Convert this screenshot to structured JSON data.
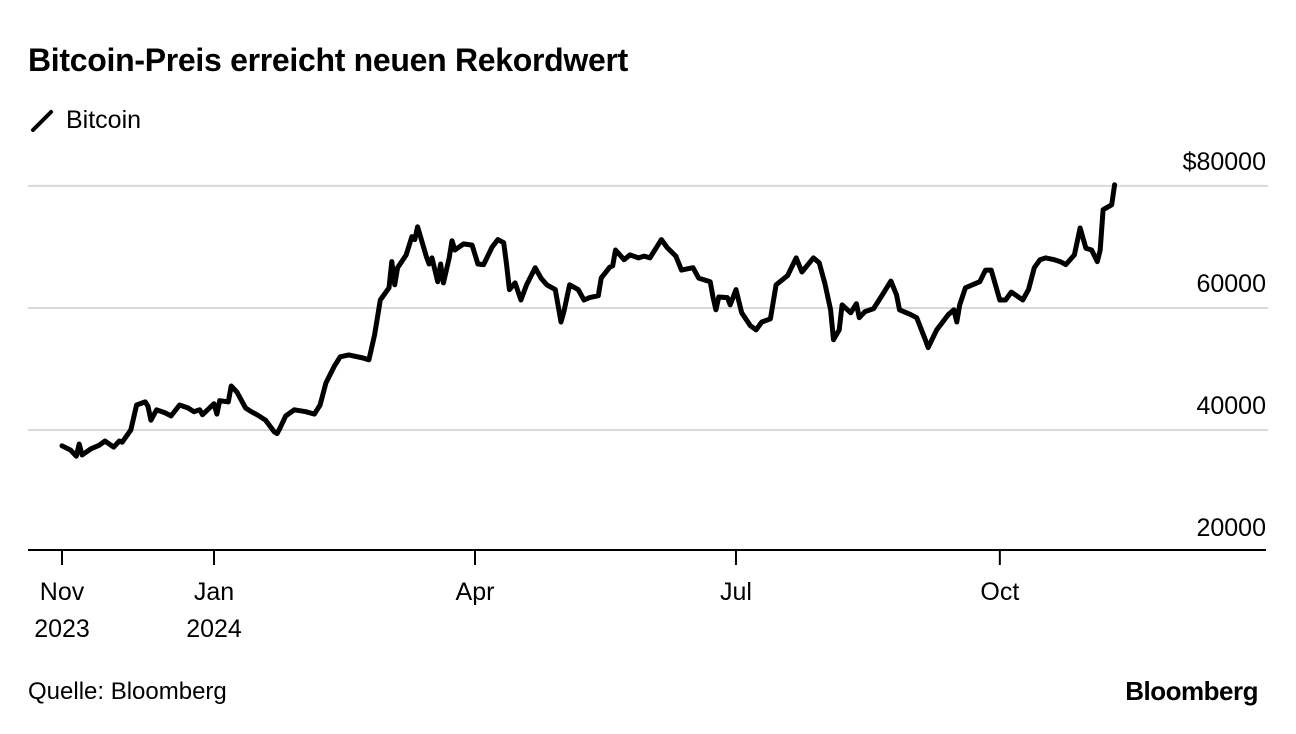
{
  "chart_data": {
    "type": "line",
    "title": "Bitcoin-Preis erreicht neuen Rekordwert",
    "xlabel": "",
    "ylabel": "",
    "x_unit": "days since series start",
    "ylim": [
      20000,
      80000
    ],
    "y_ticks": [
      {
        "value": 80000,
        "label": "$80000"
      },
      {
        "value": 60000,
        "label": "60000"
      },
      {
        "value": 40000,
        "label": "40000"
      },
      {
        "value": 20000,
        "label": "20000"
      }
    ],
    "x_ticks": [
      {
        "x": 0,
        "label": "Nov",
        "sublabel": "2023"
      },
      {
        "x": 53,
        "label": "Jan",
        "sublabel": "2024"
      },
      {
        "x": 144,
        "label": "Apr",
        "sublabel": ""
      },
      {
        "x": 235,
        "label": "Jul",
        "sublabel": ""
      },
      {
        "x": 327,
        "label": "Oct",
        "sublabel": ""
      }
    ],
    "grid": true,
    "legend_placement": "top-left",
    "series": [
      {
        "name": "Bitcoin",
        "color": "#000000",
        "points": [
          [
            0,
            37400
          ],
          [
            3,
            36700
          ],
          [
            5,
            35700
          ],
          [
            6,
            37700
          ],
          [
            7,
            35900
          ],
          [
            10,
            36900
          ],
          [
            13,
            37500
          ],
          [
            15,
            38200
          ],
          [
            18,
            37200
          ],
          [
            20,
            38200
          ],
          [
            21,
            38000
          ],
          [
            24,
            40000
          ],
          [
            26,
            44100
          ],
          [
            29,
            44600
          ],
          [
            30,
            43900
          ],
          [
            31,
            41600
          ],
          [
            33,
            43300
          ],
          [
            36,
            42800
          ],
          [
            38,
            42300
          ],
          [
            41,
            44100
          ],
          [
            44,
            43600
          ],
          [
            46,
            43000
          ],
          [
            48,
            43300
          ],
          [
            49,
            42500
          ],
          [
            53,
            44300
          ],
          [
            54,
            42600
          ],
          [
            55,
            44800
          ],
          [
            58,
            44600
          ],
          [
            59,
            47200
          ],
          [
            61,
            46200
          ],
          [
            64,
            43600
          ],
          [
            66,
            43000
          ],
          [
            68,
            42500
          ],
          [
            71,
            41600
          ],
          [
            74,
            39700
          ],
          [
            75,
            39400
          ],
          [
            76,
            40300
          ],
          [
            78,
            42300
          ],
          [
            81,
            43300
          ],
          [
            85,
            43000
          ],
          [
            88,
            42600
          ],
          [
            90,
            44100
          ],
          [
            92,
            47700
          ],
          [
            95,
            50500
          ],
          [
            97,
            52000
          ],
          [
            100,
            52300
          ],
          [
            105,
            51800
          ],
          [
            107,
            51500
          ],
          [
            109,
            55600
          ],
          [
            111,
            61300
          ],
          [
            114,
            63300
          ],
          [
            115,
            67600
          ],
          [
            116,
            63800
          ],
          [
            117,
            66600
          ],
          [
            120,
            68700
          ],
          [
            122,
            71700
          ],
          [
            123,
            71200
          ],
          [
            124,
            73300
          ],
          [
            127,
            68500
          ],
          [
            128,
            67200
          ],
          [
            129,
            68200
          ],
          [
            131,
            64300
          ],
          [
            132,
            67200
          ],
          [
            133,
            64100
          ],
          [
            135,
            68200
          ],
          [
            136,
            71000
          ],
          [
            137,
            69500
          ],
          [
            140,
            70500
          ],
          [
            143,
            70300
          ],
          [
            145,
            67200
          ],
          [
            147,
            67100
          ],
          [
            150,
            70000
          ],
          [
            152,
            71200
          ],
          [
            154,
            70700
          ],
          [
            155,
            67200
          ],
          [
            156,
            63000
          ],
          [
            158,
            64100
          ],
          [
            160,
            61300
          ],
          [
            162,
            63800
          ],
          [
            165,
            66600
          ],
          [
            167,
            64900
          ],
          [
            169,
            63800
          ],
          [
            172,
            63000
          ],
          [
            174,
            57700
          ],
          [
            175,
            59400
          ],
          [
            177,
            63800
          ],
          [
            180,
            63000
          ],
          [
            182,
            61300
          ],
          [
            184,
            61700
          ],
          [
            187,
            62000
          ],
          [
            188,
            64900
          ],
          [
            191,
            66700
          ],
          [
            192,
            66900
          ],
          [
            193,
            69500
          ],
          [
            196,
            67900
          ],
          [
            198,
            68700
          ],
          [
            201,
            68200
          ],
          [
            203,
            68500
          ],
          [
            205,
            68200
          ],
          [
            209,
            71200
          ],
          [
            211,
            69900
          ],
          [
            214,
            68500
          ],
          [
            216,
            66200
          ],
          [
            220,
            66600
          ],
          [
            222,
            64900
          ],
          [
            226,
            64300
          ],
          [
            227,
            61800
          ],
          [
            228,
            59700
          ],
          [
            229,
            61800
          ],
          [
            232,
            61700
          ],
          [
            233,
            60500
          ],
          [
            235,
            63000
          ],
          [
            237,
            59200
          ],
          [
            240,
            57100
          ],
          [
            242,
            56400
          ],
          [
            244,
            57700
          ],
          [
            247,
            58200
          ],
          [
            249,
            63800
          ],
          [
            253,
            65300
          ],
          [
            256,
            68200
          ],
          [
            258,
            65900
          ],
          [
            262,
            68200
          ],
          [
            264,
            67400
          ],
          [
            266,
            64000
          ],
          [
            268,
            59700
          ],
          [
            269,
            54800
          ],
          [
            271,
            56400
          ],
          [
            272,
            60500
          ],
          [
            275,
            59200
          ],
          [
            277,
            60700
          ],
          [
            278,
            58400
          ],
          [
            280,
            59400
          ],
          [
            283,
            59900
          ],
          [
            286,
            62100
          ],
          [
            289,
            64400
          ],
          [
            291,
            62100
          ],
          [
            292,
            59700
          ],
          [
            296,
            58900
          ],
          [
            298,
            58400
          ],
          [
            301,
            54800
          ],
          [
            302,
            53500
          ],
          [
            305,
            56400
          ],
          [
            309,
            58900
          ],
          [
            311,
            59700
          ],
          [
            312,
            57700
          ],
          [
            313,
            60500
          ],
          [
            315,
            63300
          ],
          [
            320,
            64300
          ],
          [
            322,
            66200
          ],
          [
            324,
            66200
          ],
          [
            327,
            61300
          ],
          [
            329,
            61300
          ],
          [
            331,
            62600
          ],
          [
            335,
            61300
          ],
          [
            337,
            63000
          ],
          [
            339,
            66600
          ],
          [
            341,
            67900
          ],
          [
            343,
            68200
          ],
          [
            346,
            67900
          ],
          [
            348,
            67600
          ],
          [
            350,
            67100
          ],
          [
            353,
            68700
          ],
          [
            355,
            73100
          ],
          [
            357,
            69800
          ],
          [
            359,
            69500
          ],
          [
            361,
            67600
          ],
          [
            362,
            69500
          ],
          [
            363,
            76100
          ],
          [
            366,
            76900
          ],
          [
            367,
            80200
          ]
        ]
      }
    ]
  },
  "legend": {
    "label": "Bitcoin"
  },
  "footer": {
    "source": "Quelle: Bloomberg",
    "logo": "Bloomberg"
  }
}
